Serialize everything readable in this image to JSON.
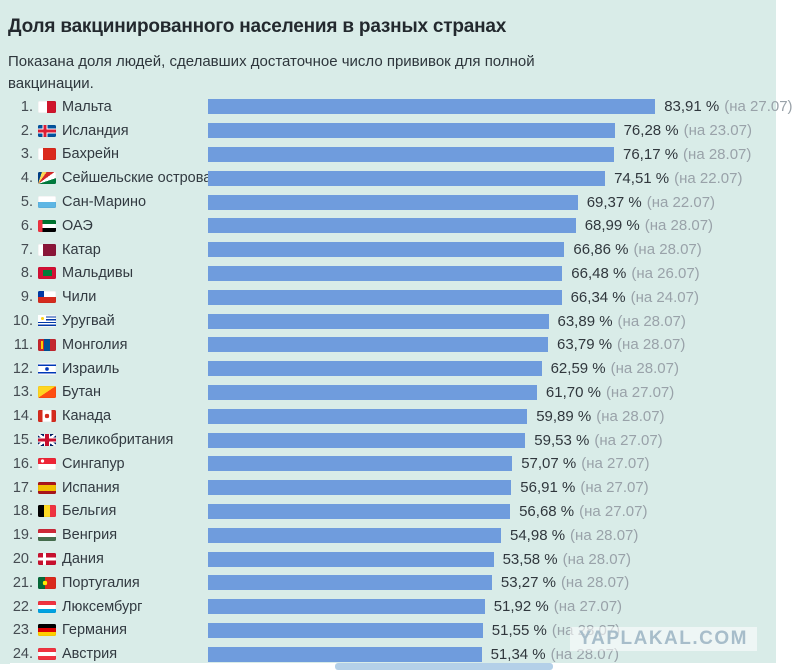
{
  "title": "Доля вакцинированного населения в разных странах",
  "subtitle": "Показана доля людей, сделавших достаточное число прививок для полной вакцинации.",
  "watermark": "YAPLAKAL.COM",
  "colors": {
    "background": "#d9ece8",
    "bar": "#6f9cdd",
    "title_text": "#23292e",
    "row_text": "#323a41",
    "date_text": "#99a2a9",
    "watermark_text": "#a7bdca",
    "scrollbar_thumb": "#b4d0e8"
  },
  "chart_data": {
    "type": "bar",
    "orientation": "horizontal",
    "title": "Доля вакцинированного населения в разных странах",
    "subtitle": "Показана доля людей, сделавших достаточное число прививок для полной вакцинации.",
    "xlabel": "",
    "ylabel": "",
    "xlim": [
      0,
      100
    ],
    "grid": false,
    "legend": false,
    "ranks": [
      "1.",
      "2.",
      "3.",
      "4.",
      "5.",
      "6.",
      "7.",
      "8.",
      "9.",
      "10.",
      "11.",
      "12.",
      "13.",
      "14.",
      "15.",
      "16.",
      "17.",
      "18.",
      "19.",
      "20.",
      "21.",
      "22.",
      "23.",
      "24."
    ],
    "categories": [
      "Мальта",
      "Исландия",
      "Бахрейн",
      "Сейшельские острова",
      "Сан-Марино",
      "ОАЭ",
      "Катар",
      "Мальдивы",
      "Чили",
      "Уругвай",
      "Монголия",
      "Израиль",
      "Бутан",
      "Канада",
      "Великобритания",
      "Сингапур",
      "Испания",
      "Бельгия",
      "Венгрия",
      "Дания",
      "Португалия",
      "Люксембург",
      "Германия",
      "Австрия"
    ],
    "values": [
      83.91,
      76.28,
      76.17,
      74.51,
      69.37,
      68.99,
      66.86,
      66.48,
      66.34,
      63.89,
      63.79,
      62.59,
      61.7,
      59.89,
      59.53,
      57.07,
      56.91,
      56.68,
      54.98,
      53.58,
      53.27,
      51.92,
      51.55,
      51.34
    ],
    "value_labels": [
      "83,91 %",
      "76,28 %",
      "76,17 %",
      "74,51 %",
      "69,37 %",
      "68,99 %",
      "66,86 %",
      "66,48 %",
      "66,34 %",
      "63,89 %",
      "63,79 %",
      "62,59 %",
      "61,70 %",
      "59,89 %",
      "59,53 %",
      "57,07 %",
      "56,91 %",
      "56,68 %",
      "54,98 %",
      "53,58 %",
      "53,27 %",
      "51,92 %",
      "51,55 %",
      "51,34 %"
    ],
    "date_labels": [
      "(на 27.07)",
      "(на 23.07)",
      "(на 28.07)",
      "(на 22.07)",
      "(на 22.07)",
      "(на 28.07)",
      "(на 28.07)",
      "(на 26.07)",
      "(на 24.07)",
      "(на 28.07)",
      "(на 28.07)",
      "(на 28.07)",
      "(на 27.07)",
      "(на 28.07)",
      "(на 27.07)",
      "(на 27.07)",
      "(на 27.07)",
      "(на 27.07)",
      "(на 28.07)",
      "(на 28.07)",
      "(на 28.07)",
      "(на 27.07)",
      "(на 28.07)",
      "(на 28.07)"
    ],
    "flags": [
      "malta",
      "iceland",
      "bahrain",
      "seychelles",
      "san-marino",
      "uae",
      "qatar",
      "maldives",
      "chile",
      "uruguay",
      "mongolia",
      "israel",
      "bhutan",
      "canada",
      "uk",
      "singapore",
      "spain",
      "belgium",
      "hungary",
      "denmark",
      "portugal",
      "luxembourg",
      "germany",
      "austria"
    ]
  }
}
